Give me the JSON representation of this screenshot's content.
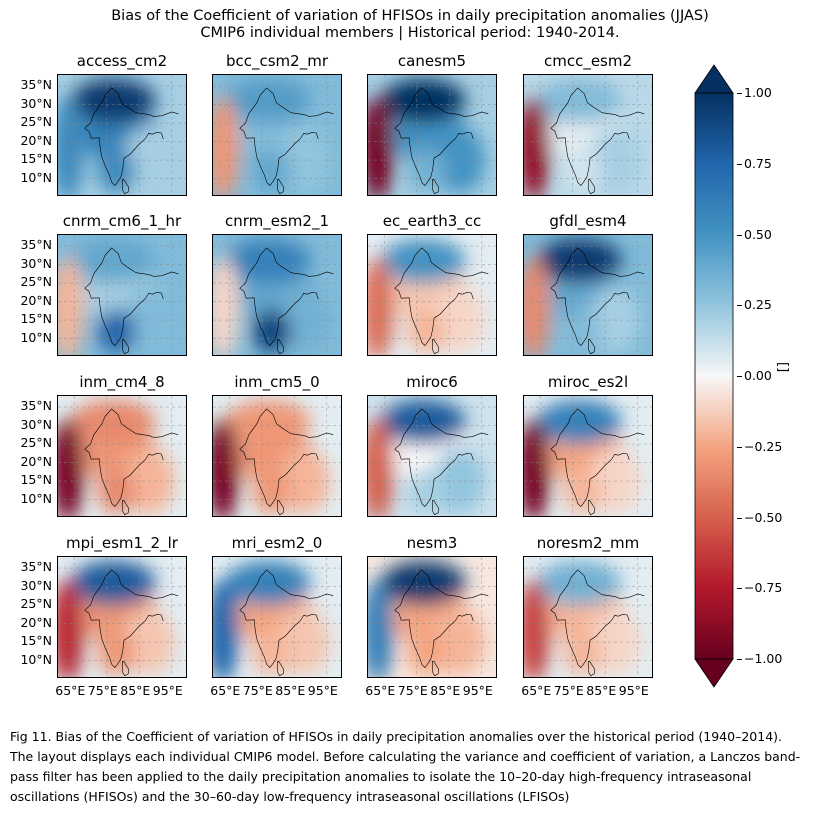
{
  "figure": {
    "title_line1": "Bias of the Coefficient of variation of HFISOs in daily precipitation anomalies (JJAS)",
    "title_line2": "CMIP6 individual members | Historical period: 1940-2014.",
    "caption": "Fig 11. Bias of the Coefficient of variation of HFISOs in daily precipitation anomalies over the historical period (1940–2014). The layout displays each individual CMIP6 model. Before calculating the variance and coefficient of variation, a Lanczos band-pass filter has been applied to the daily precipitation anomalies to isolate the 10–20-day high-frequency intraseasonal oscillations (HFISOs) and the 30–60-day low-frequency intraseasonal oscillations (LFISOs)"
  },
  "chart_data": {
    "type": "heatmap",
    "variable": "Bias of coefficient of variation of HFISOs",
    "colormap": "RdBu",
    "colors": {
      "low": "#67001f",
      "mid": "#f7f7f7",
      "high": "#053061"
    },
    "colorbar": {
      "label": "[]",
      "range": [
        -1.0,
        1.0
      ],
      "extend": "both",
      "ticks": [
        "1.00",
        "0.75",
        "0.50",
        "0.25",
        "0.00",
        "−0.25",
        "−0.50",
        "−0.75",
        "−1.00"
      ],
      "tick_values": [
        1.0,
        0.75,
        0.5,
        0.25,
        0.0,
        -0.25,
        -0.5,
        -0.75,
        -1.0
      ]
    },
    "lat_ticks": [
      "35°N",
      "30°N",
      "25°N",
      "20°N",
      "15°N",
      "10°N"
    ],
    "lat_values": [
      35,
      30,
      25,
      20,
      15,
      10
    ],
    "lon_ticks": [
      "65°E",
      "75°E",
      "85°E",
      "95°E"
    ],
    "lon_values": [
      65,
      75,
      85,
      95
    ],
    "extent": {
      "lon": [
        60,
        100
      ],
      "lat": [
        5,
        38
      ]
    },
    "models": [
      {
        "name": "access_cm2",
        "regions": {
          "west": 0.55,
          "north": 0.95,
          "central": 0.6,
          "south": 0.55,
          "bay": 0.2,
          "east": 0.2
        }
      },
      {
        "name": "bcc_csm2_mr",
        "regions": {
          "west": -0.3,
          "north": 0.45,
          "central": 0.3,
          "south": 0.4,
          "bay": 0.25,
          "east": 0.3
        }
      },
      {
        "name": "canesm5",
        "regions": {
          "west": -0.95,
          "north": 1.0,
          "central": 0.5,
          "south": 0.35,
          "bay": 0.5,
          "east": 0.2
        }
      },
      {
        "name": "cmcc_esm2",
        "regions": {
          "west": -0.85,
          "north": 0.3,
          "central": 0.05,
          "south": 0.1,
          "bay": 0.2,
          "east": 0.15
        }
      },
      {
        "name": "cnrm_cm6_1_hr",
        "regions": {
          "west": -0.2,
          "north": 0.4,
          "central": 0.2,
          "south": 0.75,
          "bay": 0.3,
          "east": 0.3
        }
      },
      {
        "name": "cnrm_esm2_1",
        "regions": {
          "west": -0.1,
          "north": 0.6,
          "central": 0.4,
          "south": 0.9,
          "bay": 0.35,
          "east": 0.3
        }
      },
      {
        "name": "ec_earth3_cc",
        "regions": {
          "west": -0.45,
          "north": 0.5,
          "central": -0.15,
          "south": -0.2,
          "bay": -0.1,
          "east": 0.05
        }
      },
      {
        "name": "gfdl_esm4",
        "regions": {
          "west": -0.35,
          "north": 0.95,
          "central": 0.4,
          "south": 0.3,
          "bay": 0.2,
          "east": 0.3
        }
      },
      {
        "name": "inm_cm4_8",
        "regions": {
          "west": -0.95,
          "north": -0.35,
          "central": -0.3,
          "south": -0.35,
          "bay": -0.2,
          "east": 0.05
        }
      },
      {
        "name": "inm_cm5_0",
        "regions": {
          "west": -0.95,
          "north": -0.3,
          "central": -0.3,
          "south": -0.3,
          "bay": -0.2,
          "east": 0.05
        }
      },
      {
        "name": "miroc6",
        "regions": {
          "west": -0.5,
          "north": 0.8,
          "central": 0.0,
          "south": 0.2,
          "bay": 0.25,
          "east": 0.1
        }
      },
      {
        "name": "miroc_es2l",
        "regions": {
          "west": -0.95,
          "north": 0.6,
          "central": -0.25,
          "south": -0.2,
          "bay": -0.1,
          "east": 0.05
        }
      },
      {
        "name": "mpi_esm1_2_lr",
        "regions": {
          "west": -0.7,
          "north": 0.8,
          "central": -0.3,
          "south": -0.3,
          "bay": -0.15,
          "east": 0.05
        }
      },
      {
        "name": "mri_esm2_0",
        "regions": {
          "west": 0.75,
          "north": 0.6,
          "central": -0.25,
          "south": -0.2,
          "bay": -0.15,
          "east": 0.05
        }
      },
      {
        "name": "nesm3",
        "regions": {
          "west": 0.6,
          "north": 0.95,
          "central": -0.25,
          "south": -0.25,
          "bay": -0.2,
          "east": -0.05
        }
      },
      {
        "name": "noresm2_mm",
        "regions": {
          "west": -0.6,
          "north": 0.35,
          "central": -0.2,
          "south": -0.2,
          "bay": -0.1,
          "east": 0.05
        }
      }
    ]
  }
}
